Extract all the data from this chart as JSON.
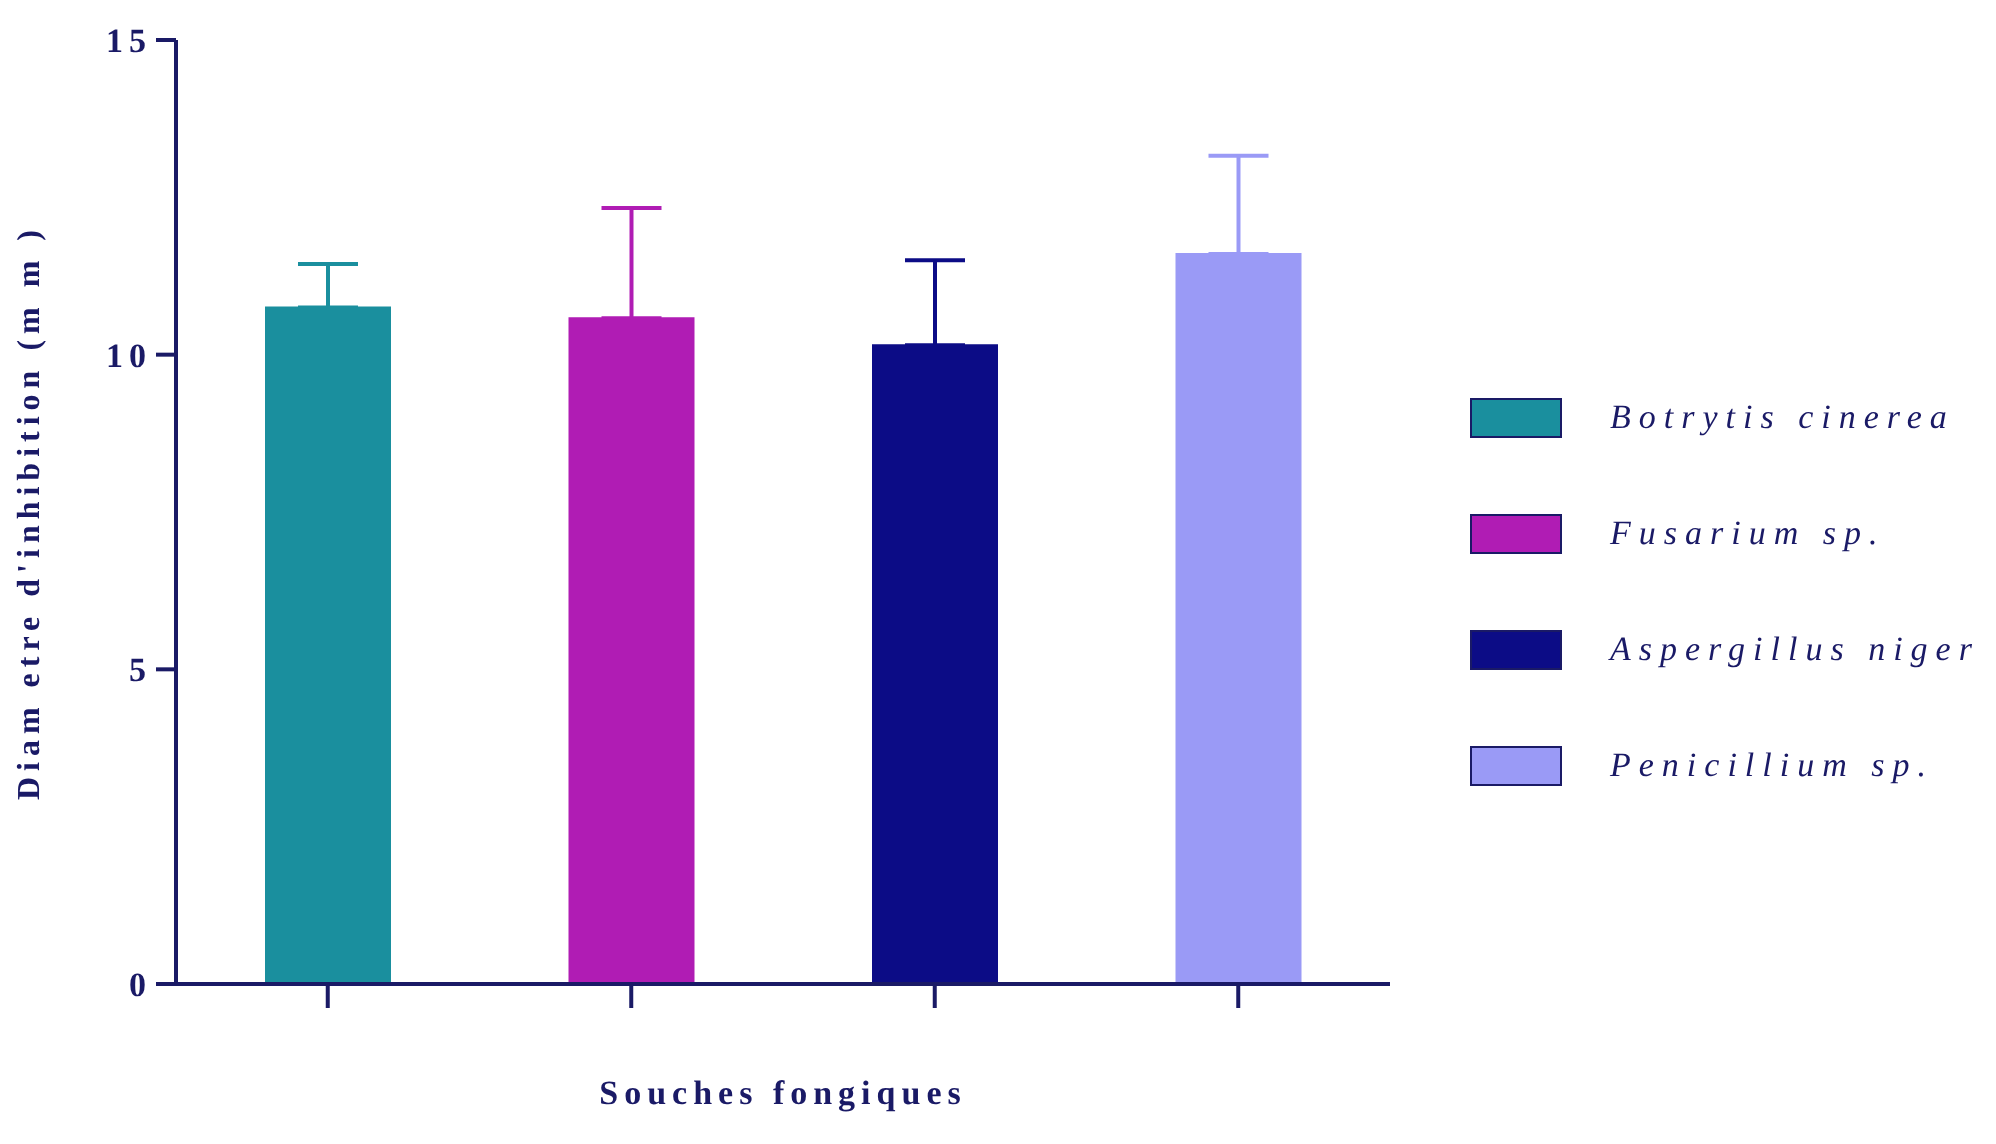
{
  "chart_data": {
    "type": "bar",
    "xlabel": "Souches fongiques",
    "ylabel": "Diam etre d'inhibition (m m )",
    "categories": [
      null,
      null,
      null,
      null
    ],
    "series": [
      {
        "name": "Botrytis cinerea",
        "color": "#1a8f9e",
        "values": [
          10.75,
          null,
          null,
          null
        ],
        "errors": [
          [
            10.75,
            11.44
          ],
          null,
          null,
          null
        ]
      },
      {
        "name": "Fusarium sp.",
        "color": "#b01cb4",
        "values": [
          null,
          10.58,
          null,
          null
        ],
        "errors": [
          null,
          [
            10.58,
            12.33
          ],
          null,
          null
        ]
      },
      {
        "name": "Aspergillus niger",
        "color": "#0c0c86",
        "values": [
          null,
          null,
          10.15,
          null
        ],
        "errors": [
          null,
          null,
          [
            10.15,
            11.5
          ],
          null
        ]
      },
      {
        "name": "Penicillium sp.",
        "color": "#9a9af6",
        "values": [
          null,
          null,
          null,
          11.6
        ],
        "errors": [
          null,
          null,
          null,
          [
            11.6,
            13.16
          ]
        ]
      }
    ],
    "ylim": [
      0,
      15
    ],
    "yticks": [
      0,
      5,
      10,
      15
    ],
    "legend": "right",
    "tick_labels": "y"
  }
}
